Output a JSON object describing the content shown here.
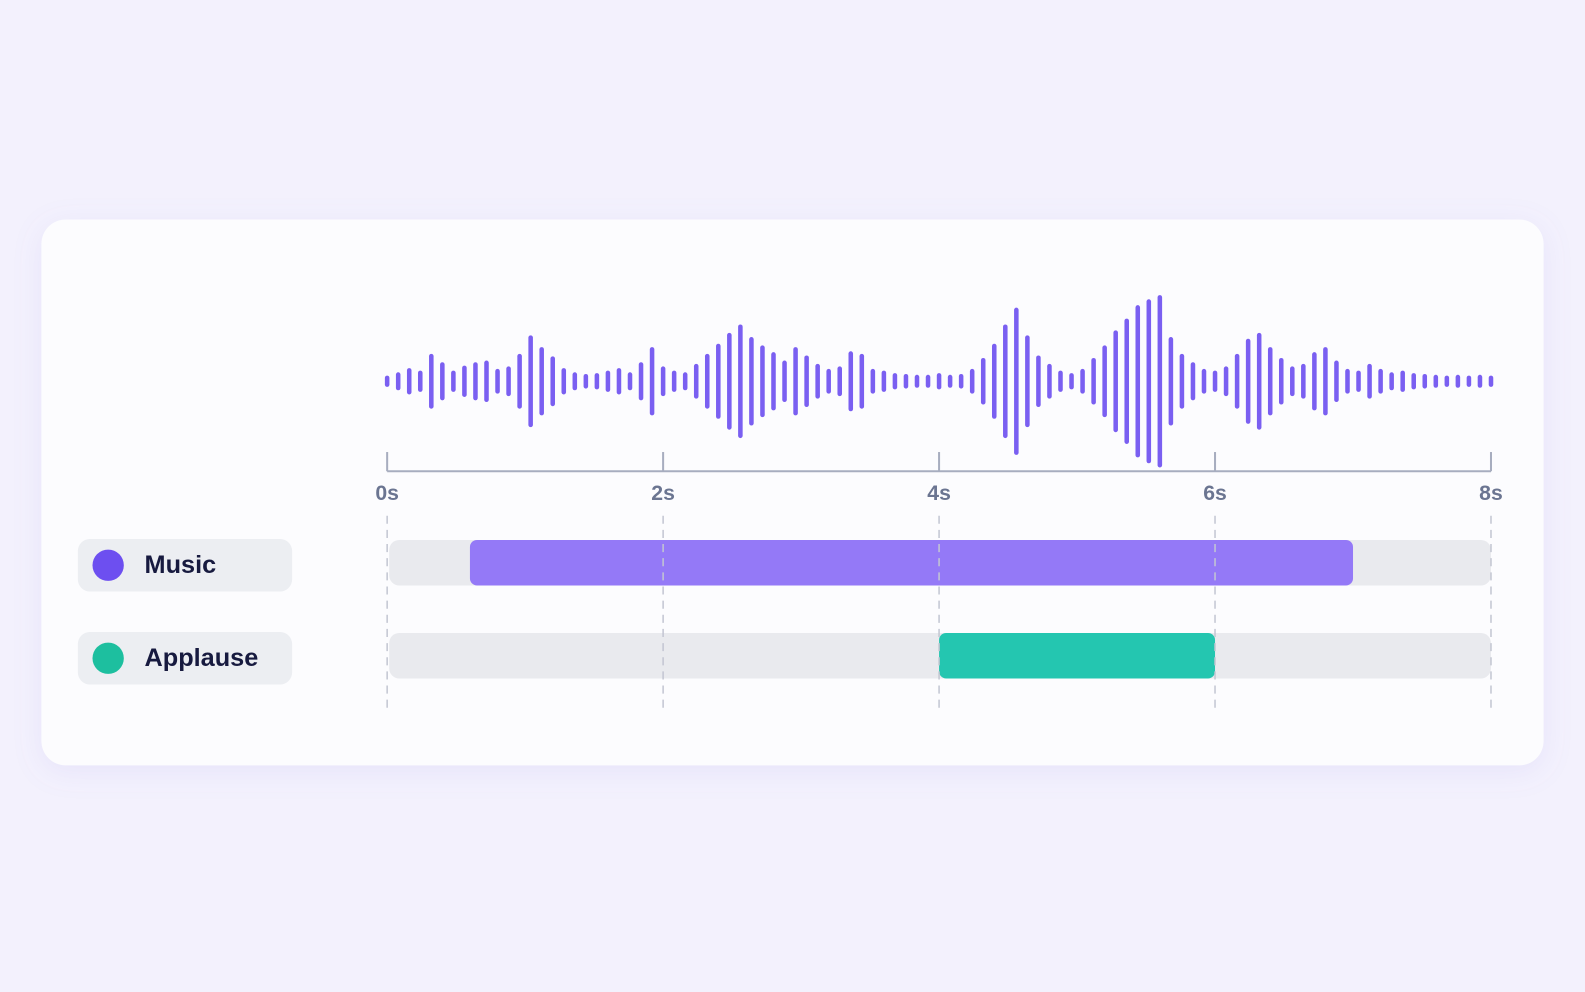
{
  "chart_data": {
    "type": "audio-timeline",
    "xlim": [
      0,
      8
    ],
    "xticks": [
      {
        "value": 0,
        "label": "0s"
      },
      {
        "value": 2,
        "label": "2s"
      },
      {
        "value": 4,
        "label": "4s"
      },
      {
        "value": 6,
        "label": "6s"
      },
      {
        "value": 8,
        "label": "8s"
      }
    ],
    "waveform": {
      "color": "#6d4ff0",
      "ylim": [
        0,
        1
      ],
      "x": [
        0,
        0.08,
        0.16,
        0.24,
        0.32,
        0.4,
        0.48,
        0.56,
        0.64,
        0.72,
        0.8,
        0.88,
        0.96,
        1.04,
        1.12,
        1.2,
        1.28,
        1.36,
        1.44,
        1.52,
        1.6,
        1.68,
        1.76,
        1.84,
        1.92,
        2,
        2.08,
        2.16,
        2.24,
        2.32,
        2.4,
        2.48,
        2.56,
        2.64,
        2.72,
        2.8,
        2.88,
        2.96,
        3.04,
        3.12,
        3.2,
        3.28,
        3.36,
        3.44,
        3.52,
        3.6,
        3.68,
        3.76,
        3.84,
        3.92,
        4,
        4.08,
        4.16,
        4.24,
        4.32,
        4.4,
        4.48,
        4.56,
        4.64,
        4.72,
        4.8,
        4.88,
        4.96,
        5.04,
        5.12,
        5.2,
        5.28,
        5.36,
        5.44,
        5.52,
        5.6,
        5.68,
        5.76,
        5.84,
        5.92,
        6,
        6.08,
        6.16,
        6.24,
        6.32,
        6.4,
        6.48,
        6.56,
        6.64,
        6.72,
        6.8,
        6.88,
        6.96,
        7.04,
        7.12,
        7.2,
        7.28,
        7.36,
        7.44,
        7.52,
        7.6,
        7.68,
        7.76,
        7.84,
        7.92,
        8
      ],
      "values": [
        0.04,
        0.08,
        0.13,
        0.1,
        0.3,
        0.2,
        0.1,
        0.16,
        0.2,
        0.22,
        0.12,
        0.15,
        0.3,
        0.52,
        0.38,
        0.27,
        0.13,
        0.08,
        0.06,
        0.07,
        0.1,
        0.13,
        0.08,
        0.2,
        0.38,
        0.15,
        0.1,
        0.08,
        0.18,
        0.3,
        0.42,
        0.55,
        0.65,
        0.5,
        0.4,
        0.32,
        0.22,
        0.38,
        0.28,
        0.18,
        0.12,
        0.15,
        0.33,
        0.3,
        0.12,
        0.1,
        0.07,
        0.06,
        0.05,
        0.05,
        0.07,
        0.05,
        0.06,
        0.12,
        0.25,
        0.42,
        0.65,
        0.85,
        0.52,
        0.28,
        0.18,
        0.1,
        0.07,
        0.12,
        0.25,
        0.4,
        0.58,
        0.72,
        0.88,
        0.95,
        1.0,
        0.5,
        0.3,
        0.2,
        0.12,
        0.1,
        0.15,
        0.3,
        0.48,
        0.55,
        0.38,
        0.25,
        0.15,
        0.18,
        0.32,
        0.38,
        0.22,
        0.12,
        0.1,
        0.18,
        0.12,
        0.08,
        0.1,
        0.07,
        0.06,
        0.05,
        0.04,
        0.05,
        0.04,
        0.05,
        0.04
      ]
    },
    "tracks": [
      {
        "name": "Music",
        "color": "#9479f7",
        "dot_color": "#6d4ff0",
        "start": 0.6,
        "end": 7.0
      },
      {
        "name": "Applause",
        "color": "#24c6b0",
        "dot_color": "#1dbf9f",
        "start": 4,
        "end": 6
      }
    ]
  }
}
